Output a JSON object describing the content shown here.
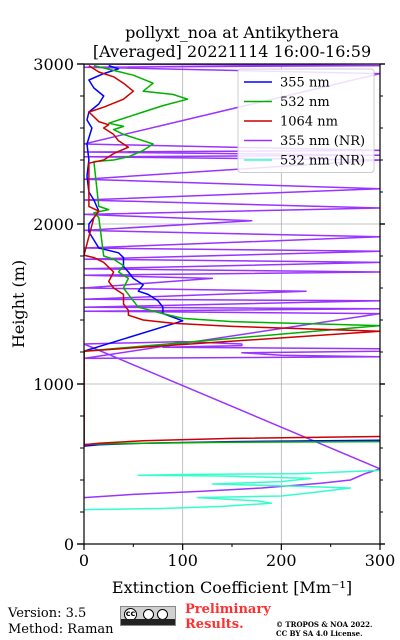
{
  "title_line1": "pollyxt_noa at Antikythera",
  "title_line2": "[Averaged] 20221114 16:00-16:59",
  "footer": {
    "version": "Version: 3.5",
    "method": "Method: Raman",
    "preliminary_line1": "Preliminary",
    "preliminary_line2": "Results.",
    "copyright_line1": "© TROPOS & NOA 2022.",
    "copyright_line2": "CC BY SA 4.0 License."
  },
  "chart_data": {
    "type": "line",
    "xlabel": "Extinction Coefficient [Mm⁻¹]",
    "ylabel": "Height (m)",
    "xlim": [
      0,
      300
    ],
    "ylim": [
      0,
      3000
    ],
    "xticks": [
      "0",
      "100",
      "200",
      "300"
    ],
    "yticks": [
      "0",
      "1000",
      "2000",
      "3000"
    ],
    "grid": true,
    "legend_position": "top-right",
    "series": [
      {
        "name": "355 nm",
        "color": "#0000ff",
        "points": [
          [
            300,
            648
          ],
          [
            150,
            640
          ],
          [
            60,
            630
          ],
          [
            15,
            620
          ],
          [
            0,
            612
          ],
          [
            0,
            1205
          ],
          [
            100,
            1395
          ],
          [
            80,
            1440
          ],
          [
            80,
            1480
          ],
          [
            75,
            1520
          ],
          [
            65,
            1560
          ],
          [
            55,
            1580
          ],
          [
            60,
            1620
          ],
          [
            50,
            1660
          ],
          [
            45,
            1700
          ],
          [
            40,
            1735
          ],
          [
            40,
            1790
          ],
          [
            35,
            1820
          ],
          [
            15,
            1850
          ],
          [
            10,
            1900
          ],
          [
            5,
            1950
          ],
          [
            5,
            2000
          ],
          [
            10,
            2040
          ],
          [
            15,
            2080
          ],
          [
            10,
            2150
          ],
          [
            5,
            2200
          ],
          [
            3,
            2300
          ],
          [
            5,
            2400
          ],
          [
            3,
            2500
          ],
          [
            8,
            2600
          ],
          [
            3,
            2650
          ],
          [
            5,
            2700
          ],
          [
            15,
            2750
          ],
          [
            20,
            2800
          ],
          [
            10,
            2850
          ],
          [
            5,
            2900
          ],
          [
            20,
            2940
          ],
          [
            35,
            2970
          ],
          [
            25,
            2990
          ]
        ]
      },
      {
        "name": "532 nm",
        "color": "#00b000",
        "points": [
          [
            300,
            640
          ],
          [
            150,
            636
          ],
          [
            60,
            630
          ],
          [
            15,
            625
          ],
          [
            0,
            622
          ],
          [
            0,
            1205
          ],
          [
            300,
            1365
          ],
          [
            150,
            1390
          ],
          [
            100,
            1410
          ],
          [
            80,
            1440
          ],
          [
            55,
            1480
          ],
          [
            50,
            1520
          ],
          [
            45,
            1560
          ],
          [
            40,
            1600
          ],
          [
            45,
            1660
          ],
          [
            35,
            1700
          ],
          [
            40,
            1740
          ],
          [
            30,
            1780
          ],
          [
            20,
            1800
          ],
          [
            15,
            2040
          ],
          [
            10,
            2070
          ],
          [
            25,
            2090
          ],
          [
            15,
            2110
          ],
          [
            10,
            2390
          ],
          [
            30,
            2400
          ],
          [
            45,
            2420
          ],
          [
            60,
            2460
          ],
          [
            70,
            2500
          ],
          [
            55,
            2530
          ],
          [
            40,
            2560
          ],
          [
            30,
            2590
          ],
          [
            40,
            2610
          ],
          [
            25,
            2630
          ],
          [
            60,
            2700
          ],
          [
            80,
            2740
          ],
          [
            105,
            2780
          ],
          [
            90,
            2810
          ],
          [
            60,
            2830
          ],
          [
            70,
            2880
          ],
          [
            50,
            2930
          ],
          [
            30,
            2960
          ],
          [
            10,
            2990
          ]
        ]
      },
      {
        "name": "1064 nm",
        "color": "#cc0000",
        "points": [
          [
            300,
            672
          ],
          [
            150,
            660
          ],
          [
            60,
            645
          ],
          [
            15,
            630
          ],
          [
            0,
            620
          ],
          [
            0,
            1205
          ],
          [
            300,
            1330
          ],
          [
            150,
            1360
          ],
          [
            90,
            1380
          ],
          [
            60,
            1400
          ],
          [
            45,
            1430
          ],
          [
            45,
            1460
          ],
          [
            40,
            1500
          ],
          [
            40,
            1560
          ],
          [
            30,
            1600
          ],
          [
            25,
            1640
          ],
          [
            30,
            1700
          ],
          [
            20,
            1760
          ],
          [
            10,
            1790
          ],
          [
            0,
            1805
          ],
          [
            10,
            2040
          ],
          [
            15,
            2080
          ],
          [
            5,
            2110
          ],
          [
            5,
            2380
          ],
          [
            20,
            2400
          ],
          [
            30,
            2440
          ],
          [
            45,
            2480
          ],
          [
            35,
            2520
          ],
          [
            30,
            2560
          ],
          [
            20,
            2600
          ],
          [
            25,
            2620
          ],
          [
            15,
            2640
          ],
          [
            5,
            2700
          ],
          [
            20,
            2730
          ],
          [
            40,
            2780
          ],
          [
            50,
            2830
          ],
          [
            40,
            2880
          ],
          [
            30,
            2920
          ],
          [
            15,
            2950
          ],
          [
            5,
            2990
          ]
        ]
      },
      {
        "name": "355 nm (NR)",
        "color": "#9933ff",
        "points": [
          [
            0,
            290
          ],
          [
            50,
            310
          ],
          [
            120,
            330
          ],
          [
            180,
            350
          ],
          [
            240,
            380
          ],
          [
            270,
            400
          ],
          [
            285,
            440
          ],
          [
            300,
            470
          ],
          [
            0,
            1250
          ],
          [
            100,
            1265
          ],
          [
            160,
            1250
          ],
          [
            160,
            1240
          ],
          [
            80,
            1230
          ],
          [
            300,
            1220
          ],
          [
            300,
            1205
          ],
          [
            160,
            1195
          ],
          [
            200,
            1180
          ],
          [
            300,
            1170
          ],
          [
            0,
            1160
          ],
          [
            300,
            1440
          ],
          [
            0,
            1455
          ],
          [
            300,
            1470
          ],
          [
            0,
            1480
          ],
          [
            300,
            1520
          ],
          [
            0,
            1530
          ],
          [
            225,
            1580
          ],
          [
            0,
            1600
          ],
          [
            130,
            1660
          ],
          [
            0,
            1680
          ],
          [
            300,
            1700
          ],
          [
            0,
            1720
          ],
          [
            300,
            1760
          ],
          [
            0,
            1780
          ],
          [
            300,
            1830
          ],
          [
            0,
            1850
          ],
          [
            300,
            1920
          ],
          [
            0,
            1960
          ],
          [
            170,
            2020
          ],
          [
            0,
            2060
          ],
          [
            300,
            2100
          ],
          [
            0,
            2150
          ],
          [
            300,
            2220
          ],
          [
            0,
            2280
          ],
          [
            300,
            2400
          ],
          [
            0,
            2420
          ],
          [
            300,
            2430
          ],
          [
            0,
            2450
          ],
          [
            300,
            2460
          ],
          [
            0,
            2500
          ],
          [
            300,
            2940
          ],
          [
            0,
            2980
          ],
          [
            300,
            2990
          ],
          [
            0,
            3000
          ]
        ]
      },
      {
        "name": "532 nm (NR)",
        "color": "#33ffcc",
        "points": [
          [
            0,
            215
          ],
          [
            80,
            222
          ],
          [
            140,
            235
          ],
          [
            190,
            255
          ],
          [
            175,
            270
          ],
          [
            115,
            290
          ],
          [
            200,
            300
          ],
          [
            230,
            320
          ],
          [
            270,
            350
          ],
          [
            220,
            360
          ],
          [
            130,
            375
          ],
          [
            200,
            390
          ],
          [
            230,
            410
          ],
          [
            140,
            425
          ],
          [
            55,
            430
          ],
          [
            110,
            435
          ],
          [
            220,
            440
          ],
          [
            300,
            460
          ]
        ]
      }
    ]
  },
  "styles": {
    "grid_color": "#b0b0b0",
    "preliminary_color": "#ff3030"
  }
}
